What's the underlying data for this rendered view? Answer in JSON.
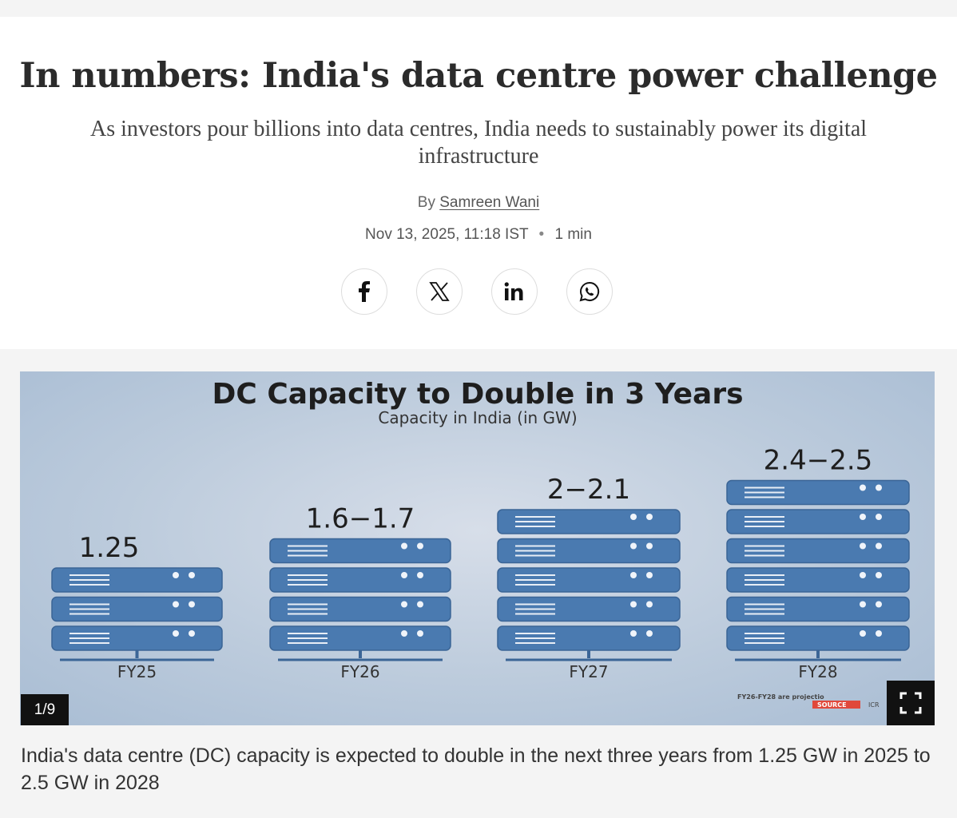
{
  "article": {
    "headline": "In numbers: India's data centre power challenge",
    "subheadline": "As investors pour billions into data centres, India needs to sustainably power its digital infrastructure",
    "byline_prefix": "By",
    "author": "Samreen Wani",
    "date": "Nov 13, 2025, 11:18 IST",
    "separator": "•",
    "read_time": "1 min"
  },
  "share": [
    {
      "name": "facebook-icon",
      "label": "f"
    },
    {
      "name": "x-icon",
      "label": "X"
    },
    {
      "name": "linkedin-icon",
      "label": "in"
    },
    {
      "name": "whatsapp-icon",
      "label": "WhatsApp"
    }
  ],
  "gallery": {
    "counter": "1/9",
    "caption": "India's data centre (DC) capacity is expected to double in the next three years from 1.25 GW in 2025 to 2.5 GW in 2028"
  },
  "chart_data": {
    "type": "bar",
    "title": "DC Capacity to Double in 3 Years",
    "subtitle": "Capacity in India (in GW)",
    "categories": [
      "FY25",
      "FY26",
      "FY27",
      "FY28"
    ],
    "value_labels": [
      "1.25",
      "1.6−1.7",
      "2−2.1",
      "2.4−2.5"
    ],
    "values": [
      1.25,
      1.65,
      2.05,
      2.45
    ],
    "server_units": [
      3,
      4,
      5,
      6
    ],
    "footnote": "FY26-FY28 are projectio",
    "source_badge": "SOURCE",
    "source_text": "ICR",
    "colors": {
      "server": "#4a7ab0",
      "server_stroke": "#3b6596",
      "text": "#1e1e1e"
    }
  }
}
